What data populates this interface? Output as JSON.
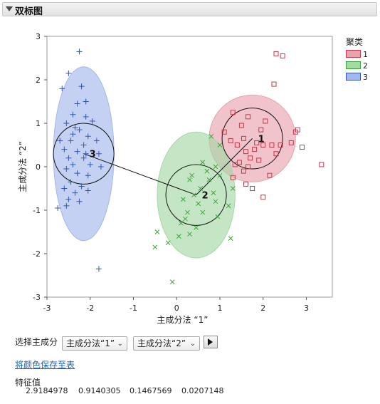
{
  "panel_title": "双标图",
  "chart_data": {
    "type": "scatter",
    "xlabel": "主成分法 “1”",
    "ylabel": "主成分法 “2”",
    "xlim": [
      -3,
      3.6
    ],
    "ylim": [
      -3,
      3
    ],
    "x_ticks": [
      "-3",
      "-2",
      "-1",
      "0",
      "1",
      "2",
      "3"
    ],
    "y_ticks": [
      "3",
      "2",
      "1",
      "0",
      "-1",
      "-2",
      "-3"
    ],
    "legend_title": "聚类",
    "legend_placement": "right",
    "clusters": [
      {
        "name": "1",
        "marker": "square",
        "color": "#c8364a",
        "fill": "#e8a4ad",
        "centroid": [
          1.75,
          0.65
        ],
        "circle_r": 0.7,
        "ellipse": {
          "rx": 1.0,
          "ry": 1.0
        },
        "points": [
          [
            2.3,
            2.6
          ],
          [
            2.45,
            2.55
          ],
          [
            2.25,
            1.9
          ],
          [
            1.3,
            1.25
          ],
          [
            1.65,
            1.15
          ],
          [
            2.8,
            0.85
          ],
          [
            2.75,
            0.8
          ],
          [
            1.1,
            0.8
          ],
          [
            1.25,
            0.6
          ],
          [
            1.55,
            0.65
          ],
          [
            1.4,
            0.5
          ],
          [
            1.85,
            0.55
          ],
          [
            2.0,
            0.5
          ],
          [
            2.2,
            0.5
          ],
          [
            2.4,
            0.5
          ],
          [
            2.65,
            0.55
          ],
          [
            1.6,
            0.35
          ],
          [
            1.8,
            0.4
          ],
          [
            2.9,
            0.45
          ],
          [
            2.3,
            0.3
          ],
          [
            1.7,
            0.2
          ],
          [
            1.9,
            0.15
          ],
          [
            1.35,
            0.05
          ],
          [
            1.55,
            -0.1
          ],
          [
            2.15,
            -0.2
          ],
          [
            1.6,
            -0.4
          ],
          [
            1.75,
            -0.5
          ],
          [
            1.3,
            -0.25
          ],
          [
            2.0,
            -0.7
          ],
          [
            3.35,
            0.05
          ],
          [
            1.45,
            0.1
          ],
          [
            1.65,
            0.0
          ],
          [
            2.05,
            1.05
          ],
          [
            1.95,
            0.85
          ],
          [
            1.5,
            0.95
          ]
        ]
      },
      {
        "name": "2",
        "marker": "x",
        "color": "#3aa63a",
        "fill": "#a6d8a6",
        "centroid": [
          0.45,
          -0.65
        ],
        "circle_r": 0.7,
        "ellipse": {
          "rx": 0.9,
          "ry": 1.45
        },
        "points": [
          [
            0.6,
            0.1
          ],
          [
            0.9,
            0.0
          ],
          [
            1.0,
            -0.2
          ],
          [
            0.75,
            -0.3
          ],
          [
            0.3,
            -0.3
          ],
          [
            0.55,
            -0.5
          ],
          [
            0.4,
            -0.65
          ],
          [
            0.15,
            -0.75
          ],
          [
            0.9,
            -0.8
          ],
          [
            1.2,
            -0.9
          ],
          [
            0.25,
            -1.05
          ],
          [
            0.6,
            -1.05
          ],
          [
            0.95,
            -1.15
          ],
          [
            0.1,
            -1.3
          ],
          [
            0.45,
            -1.4
          ],
          [
            0.3,
            -1.55
          ],
          [
            0.05,
            -1.6
          ],
          [
            -0.45,
            -1.5
          ],
          [
            -0.2,
            -1.75
          ],
          [
            -0.5,
            -1.85
          ],
          [
            -0.1,
            -2.65
          ],
          [
            1.25,
            -1.65
          ],
          [
            1.0,
            0.5
          ],
          [
            0.8,
            0.7
          ],
          [
            1.3,
            -0.5
          ],
          [
            0.35,
            -0.2
          ],
          [
            0.7,
            -0.1
          ],
          [
            0.5,
            -0.85
          ],
          [
            0.2,
            -1.2
          ],
          [
            0.85,
            -0.6
          ]
        ]
      },
      {
        "name": "3",
        "marker": "plus",
        "color": "#2e55b8",
        "fill": "#a4b8ec",
        "centroid": [
          -2.15,
          0.3
        ],
        "circle_r": 0.7,
        "ellipse": {
          "rx": 0.7,
          "ry": 2.0
        },
        "points": [
          [
            -2.25,
            2.65
          ],
          [
            -2.5,
            2.15
          ],
          [
            -2.65,
            1.8
          ],
          [
            -2.2,
            1.85
          ],
          [
            -2.1,
            1.5
          ],
          [
            -2.3,
            1.45
          ],
          [
            -2.4,
            1.2
          ],
          [
            -2.1,
            1.15
          ],
          [
            -1.95,
            1.05
          ],
          [
            -2.55,
            1.0
          ],
          [
            -2.35,
            0.9
          ],
          [
            -2.25,
            0.85
          ],
          [
            -2.05,
            0.7
          ],
          [
            -2.7,
            0.6
          ],
          [
            -2.45,
            0.6
          ],
          [
            -1.85,
            0.6
          ],
          [
            -2.6,
            0.4
          ],
          [
            -2.3,
            0.35
          ],
          [
            -2.1,
            0.3
          ],
          [
            -1.8,
            0.3
          ],
          [
            -2.5,
            0.2
          ],
          [
            -2.15,
            0.2
          ],
          [
            -2.4,
            0.05
          ],
          [
            -2.0,
            0.05
          ],
          [
            -1.75,
            0.0
          ],
          [
            -2.55,
            -0.05
          ],
          [
            -2.3,
            -0.15
          ],
          [
            -2.05,
            -0.2
          ],
          [
            -2.45,
            -0.35
          ],
          [
            -2.2,
            -0.45
          ],
          [
            -2.6,
            -0.5
          ],
          [
            -2.35,
            -0.6
          ],
          [
            -2.05,
            -0.55
          ],
          [
            -2.5,
            -0.75
          ],
          [
            -2.25,
            -0.8
          ],
          [
            -2.75,
            -0.95
          ],
          [
            -2.55,
            -0.9
          ],
          [
            -1.8,
            -2.35
          ],
          [
            -2.15,
            0.5
          ],
          [
            -2.4,
            0.75
          ]
        ]
      }
    ],
    "cluster_line_path": [
      [
        -2.15,
        0.3
      ],
      [
        0.45,
        -0.65
      ],
      [
        1.75,
        0.65
      ]
    ]
  },
  "controls": {
    "select_label": "选择主成分",
    "dropdown_1": "主成分法“1”",
    "dropdown_2": "主成分法“2”",
    "dropdown_arrow": "⌄",
    "save_colors_link": "将颜色保存至表"
  },
  "eigenvalues": {
    "title": "特征值",
    "values": [
      "2.9184978",
      "0.9140305",
      "0.1467569",
      "0.0207148"
    ]
  }
}
